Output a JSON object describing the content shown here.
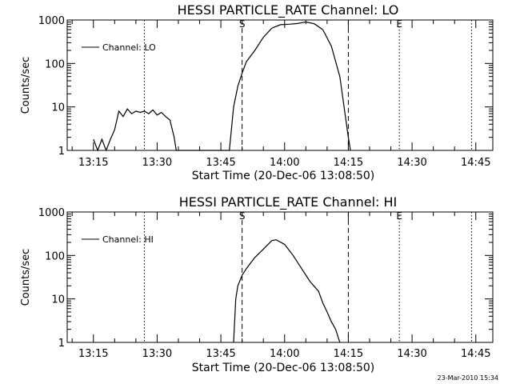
{
  "chart_data": [
    {
      "type": "line",
      "title": "HESSI PARTICLE_RATE Channel: LO",
      "xlabel": "Start Time (20-Dec-06 13:08:50)",
      "ylabel": "Counts/sec",
      "y_scale": "log",
      "ylim": [
        1,
        1000
      ],
      "xlim": [
        "13:08:50",
        "14:49:00"
      ],
      "x_ticks": [
        "13:15",
        "13:30",
        "13:45",
        "14:00",
        "14:15",
        "14:30",
        "14:45"
      ],
      "y_ticks": [
        "1",
        "10",
        "100",
        "1000"
      ],
      "legend": {
        "placement": "top-left",
        "entries": [
          "Channel: LO"
        ]
      },
      "markers": [
        {
          "label": "S",
          "time": "13:50",
          "style": "dashed"
        },
        {
          "label": "",
          "time": "14:15",
          "style": "dashed"
        },
        {
          "label": "E",
          "time": "14:27",
          "style": "dotted"
        },
        {
          "label": "",
          "time": "13:27",
          "style": "dotted"
        },
        {
          "label": "",
          "time": "14:44",
          "style": "dotted"
        }
      ],
      "series": [
        {
          "name": "Channel: LO",
          "points": [
            [
              "13:15",
              1.8
            ],
            [
              "13:16",
              1
            ],
            [
              "13:17",
              1.8
            ],
            [
              "13:18",
              1
            ],
            [
              "13:19",
              1.8
            ],
            [
              "13:20",
              3
            ],
            [
              "13:21",
              8
            ],
            [
              "13:22",
              6
            ],
            [
              "13:23",
              9
            ],
            [
              "13:24",
              7
            ],
            [
              "13:25",
              8
            ],
            [
              "13:26",
              7.5
            ],
            [
              "13:27",
              8
            ],
            [
              "13:28",
              7
            ],
            [
              "13:29",
              8.5
            ],
            [
              "13:30",
              6.5
            ],
            [
              "13:31",
              7.5
            ],
            [
              "13:32",
              6
            ],
            [
              "13:33",
              5
            ],
            [
              "13:34",
              2
            ],
            [
              "13:34:30",
              1
            ],
            [
              "13:47",
              1
            ],
            [
              "13:48",
              10
            ],
            [
              "13:49",
              30
            ],
            [
              "13:50",
              60
            ],
            [
              "13:51",
              110
            ],
            [
              "13:53",
              200
            ],
            [
              "13:55",
              400
            ],
            [
              "13:57",
              650
            ],
            [
              "13:59",
              780
            ],
            [
              "14:01",
              800
            ],
            [
              "14:03",
              830
            ],
            [
              "14:05",
              900
            ],
            [
              "14:07",
              820
            ],
            [
              "14:09",
              600
            ],
            [
              "14:11",
              250
            ],
            [
              "14:13",
              50
            ],
            [
              "14:14",
              10
            ],
            [
              "14:15",
              2
            ],
            [
              "14:15:30",
              1
            ]
          ]
        }
      ]
    },
    {
      "type": "line",
      "title": "HESSI PARTICLE_RATE Channel: HI",
      "xlabel": "Start Time (20-Dec-06 13:08:50)",
      "ylabel": "Counts/sec",
      "y_scale": "log",
      "ylim": [
        1,
        1000
      ],
      "xlim": [
        "13:08:50",
        "14:49:00"
      ],
      "x_ticks": [
        "13:15",
        "13:30",
        "13:45",
        "14:00",
        "14:15",
        "14:30",
        "14:45"
      ],
      "y_ticks": [
        "1",
        "10",
        "100",
        "1000"
      ],
      "legend": {
        "placement": "top-left",
        "entries": [
          "Channel: HI"
        ]
      },
      "markers": [
        {
          "label": "S",
          "time": "13:50",
          "style": "dashed"
        },
        {
          "label": "",
          "time": "14:15",
          "style": "dashed"
        },
        {
          "label": "E",
          "time": "14:27",
          "style": "dotted"
        },
        {
          "label": "",
          "time": "13:27",
          "style": "dotted"
        },
        {
          "label": "",
          "time": "14:44",
          "style": "dotted"
        }
      ],
      "series": [
        {
          "name": "Channel: HI",
          "points": [
            [
              "13:48",
              1
            ],
            [
              "13:48:30",
              10
            ],
            [
              "13:49",
              20
            ],
            [
              "13:50",
              35
            ],
            [
              "13:51",
              50
            ],
            [
              "13:53",
              90
            ],
            [
              "13:55",
              140
            ],
            [
              "13:57",
              220
            ],
            [
              "13:58",
              230
            ],
            [
              "14:00",
              180
            ],
            [
              "14:02",
              100
            ],
            [
              "14:04",
              50
            ],
            [
              "14:06",
              25
            ],
            [
              "14:08",
              15
            ],
            [
              "14:09",
              8
            ],
            [
              "14:10",
              5
            ],
            [
              "14:11",
              3
            ],
            [
              "14:12",
              2
            ],
            [
              "14:13",
              1
            ]
          ]
        }
      ]
    }
  ],
  "footer": {
    "timestamp": "23-Mar-2010 15:34"
  }
}
